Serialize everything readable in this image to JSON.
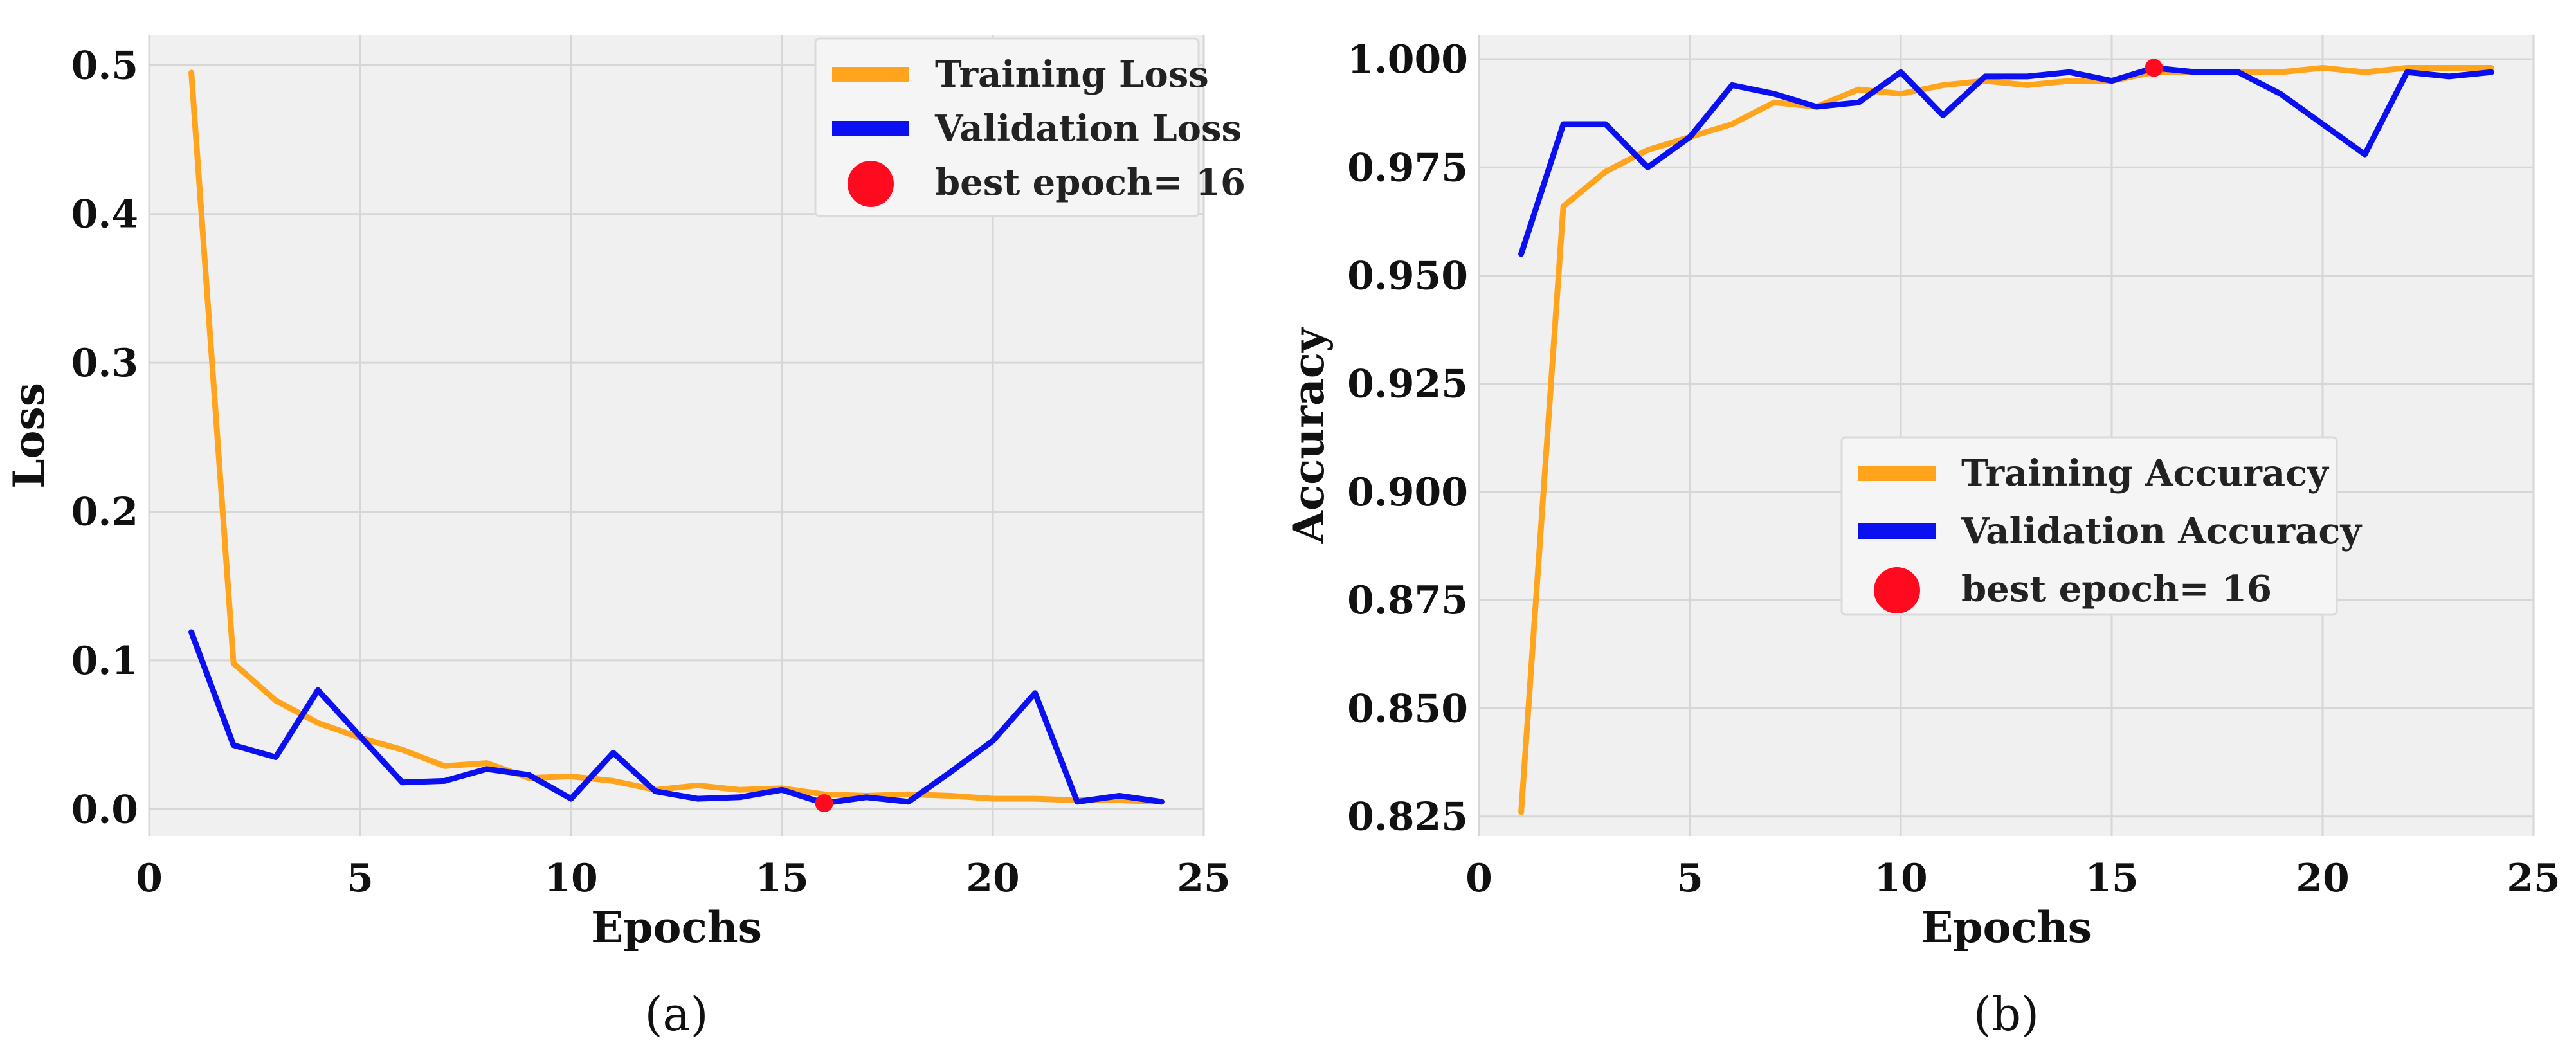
{
  "colors": {
    "training": "#FFA41C",
    "validation": "#0A10F0",
    "best": "#FF0A1E",
    "plot_bg": "#F0F0F0",
    "grid": "#D6D6D6",
    "legend_bg": "#F5F5F5"
  },
  "chart_data": [
    {
      "type": "line",
      "caption": "(a)",
      "xlabel": "Epochs",
      "ylabel": "Loss",
      "xlim": [
        0,
        25
      ],
      "ylim": [
        -0.018,
        0.52
      ],
      "xticks": [
        0,
        5,
        10,
        15,
        20,
        25
      ],
      "yticks": [
        0.0,
        0.1,
        0.2,
        0.3,
        0.4,
        0.5
      ],
      "ytick_labels": [
        "0.0",
        "0.1",
        "0.2",
        "0.3",
        "0.4",
        "0.5"
      ],
      "grid": true,
      "legend_position": "top-right",
      "x": [
        1,
        2,
        3,
        4,
        5,
        6,
        7,
        8,
        9,
        10,
        11,
        12,
        13,
        14,
        15,
        16,
        17,
        18,
        19,
        20,
        21,
        22,
        23,
        24
      ],
      "series": [
        {
          "name": "Training Loss",
          "color_key": "training",
          "values": [
            0.495,
            0.098,
            0.073,
            0.058,
            0.048,
            0.04,
            0.029,
            0.031,
            0.021,
            0.022,
            0.019,
            0.013,
            0.016,
            0.013,
            0.014,
            0.01,
            0.009,
            0.01,
            0.009,
            0.007,
            0.007,
            0.006,
            0.006,
            0.005
          ]
        },
        {
          "name": "Validation Loss",
          "color_key": "validation",
          "values": [
            0.119,
            0.043,
            0.035,
            0.08,
            0.049,
            0.018,
            0.019,
            0.027,
            0.023,
            0.007,
            0.038,
            0.012,
            0.007,
            0.008,
            0.013,
            0.004,
            0.008,
            0.005,
            0.025,
            0.046,
            0.078,
            0.005,
            0.009,
            0.005
          ]
        }
      ],
      "best_point": {
        "label": "best epoch= 16",
        "x": 16,
        "y": 0.004
      }
    },
    {
      "type": "line",
      "caption": "(b)",
      "xlabel": "Epochs",
      "ylabel": "Accuracy",
      "xlim": [
        0,
        25
      ],
      "ylim": [
        0.8205,
        1.0055
      ],
      "xticks": [
        0,
        5,
        10,
        15,
        20,
        25
      ],
      "yticks": [
        0.825,
        0.85,
        0.875,
        0.9,
        0.925,
        0.95,
        0.975,
        1.0
      ],
      "ytick_labels": [
        "0.825",
        "0.850",
        "0.875",
        "0.900",
        "0.925",
        "0.950",
        "0.975",
        "1.000"
      ],
      "grid": true,
      "legend_position": "center-right",
      "x": [
        1,
        2,
        3,
        4,
        5,
        6,
        7,
        8,
        9,
        10,
        11,
        12,
        13,
        14,
        15,
        16,
        17,
        18,
        19,
        20,
        21,
        22,
        23,
        24
      ],
      "series": [
        {
          "name": "Training Accuracy",
          "color_key": "training",
          "values": [
            0.826,
            0.966,
            0.974,
            0.979,
            0.982,
            0.985,
            0.99,
            0.989,
            0.993,
            0.992,
            0.994,
            0.995,
            0.994,
            0.995,
            0.995,
            0.997,
            0.997,
            0.997,
            0.997,
            0.998,
            0.997,
            0.998,
            0.998,
            0.998
          ]
        },
        {
          "name": "Validation Accuracy",
          "color_key": "validation",
          "values": [
            0.955,
            0.985,
            0.985,
            0.975,
            0.982,
            0.994,
            0.992,
            0.989,
            0.99,
            0.997,
            0.987,
            0.996,
            0.996,
            0.997,
            0.995,
            0.998,
            0.997,
            0.997,
            0.992,
            0.985,
            0.978,
            0.997,
            0.996,
            0.997
          ]
        }
      ],
      "best_point": {
        "label": "best epoch= 16",
        "x": 16,
        "y": 0.998
      }
    }
  ]
}
